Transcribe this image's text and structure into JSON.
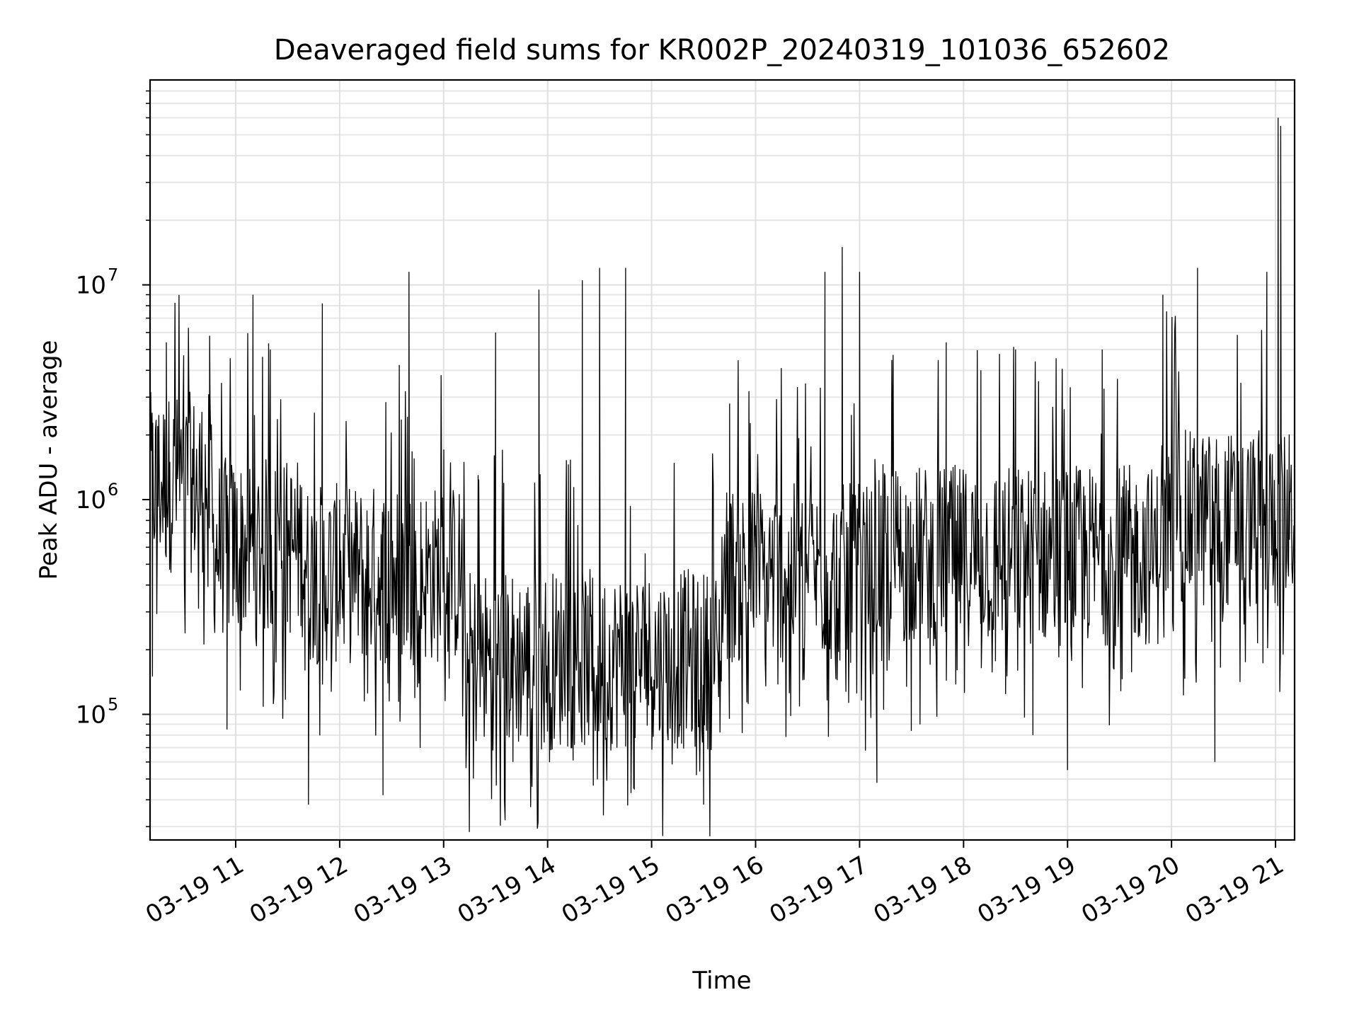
{
  "chart_data": {
    "type": "line",
    "title": "Deaveraged field sums for KR002P_20240319_101036_652602",
    "xlabel": "Time",
    "ylabel": "Peak ADU - average",
    "y_scale": "log",
    "x_range": [
      "2024-03-19 10:10:36",
      "2024-03-19 21:11:00"
    ],
    "ylim": [
      26000,
      90000000
    ],
    "grid": true,
    "x_ticks": [
      "03-19 11",
      "03-19 12",
      "03-19 13",
      "03-19 14",
      "03-19 15",
      "03-19 16",
      "03-19 17",
      "03-19 18",
      "03-19 19",
      "03-19 20",
      "03-19 21"
    ],
    "y_ticks": [
      {
        "value": 100000,
        "base": "10",
        "exp": "5"
      },
      {
        "value": 1000000,
        "base": "10",
        "exp": "6"
      },
      {
        "value": 10000000,
        "base": "10",
        "exp": "7"
      }
    ],
    "series": [
      {
        "color": "#000000",
        "values": [
          [
            "2024-03-19 10:10:36",
            3000000
          ],
          [
            "2024-03-19 10:12:00",
            150000
          ],
          [
            "2024-03-19 10:15:00",
            2200000
          ],
          [
            "2024-03-19 10:18:00",
            800000
          ],
          [
            "2024-03-19 10:20:00",
            5400000
          ],
          [
            "2024-03-19 10:22:00",
            1500000
          ],
          [
            "2024-03-19 10:30:00",
            4700000
          ],
          [
            "2024-03-19 10:35:00",
            700000
          ],
          [
            "2024-03-19 10:45:00",
            5800000
          ],
          [
            "2024-03-19 10:55:00",
            85000
          ],
          [
            "2024-03-19 11:00:00",
            700000
          ],
          [
            "2024-03-19 11:10:00",
            9000000
          ],
          [
            "2024-03-19 11:20:00",
            5000000
          ],
          [
            "2024-03-19 11:30:00",
            600000
          ],
          [
            "2024-03-19 11:40:00",
            160000
          ],
          [
            "2024-03-19 11:50:00",
            8200000
          ],
          [
            "2024-03-19 11:42:00",
            38000
          ],
          [
            "2024-03-19 12:00:00",
            1000000
          ],
          [
            "2024-03-19 12:20:00",
            300000
          ],
          [
            "2024-03-19 12:25:00",
            42000
          ],
          [
            "2024-03-19 12:40:00",
            11500000
          ],
          [
            "2024-03-19 12:50:00",
            700000
          ],
          [
            "2024-03-19 13:00:00",
            500000
          ],
          [
            "2024-03-19 13:20:00",
            200000
          ],
          [
            "2024-03-19 13:30:00",
            6000000
          ],
          [
            "2024-03-19 13:40:00",
            60000
          ],
          [
            "2024-03-19 13:55:00",
            9500000
          ],
          [
            "2024-03-19 14:05:00",
            150000
          ],
          [
            "2024-03-19 14:20:00",
            10500000
          ],
          [
            "2024-03-19 14:30:00",
            12000000
          ],
          [
            "2024-03-19 14:45:00",
            12000000
          ],
          [
            "2024-03-19 14:50:00",
            45000
          ],
          [
            "2024-03-19 15:00:00",
            150000
          ],
          [
            "2024-03-19 15:20:00",
            90000
          ],
          [
            "2024-03-19 15:30:00",
            38000
          ],
          [
            "2024-03-19 15:45:00",
            2800000
          ],
          [
            "2024-03-19 16:00:00",
            600000
          ],
          [
            "2024-03-19 16:20:00",
            500000
          ],
          [
            "2024-03-19 16:40:00",
            11500000
          ],
          [
            "2024-03-19 16:50:00",
            15000000
          ],
          [
            "2024-03-19 17:00:00",
            11500000
          ],
          [
            "2024-03-19 17:10:00",
            48000
          ],
          [
            "2024-03-19 17:30:00",
            600000
          ],
          [
            "2024-03-19 17:50:00",
            5400000
          ],
          [
            "2024-03-19 18:10:00",
            4000000
          ],
          [
            "2024-03-19 18:30:00",
            5000000
          ],
          [
            "2024-03-19 18:40:00",
            80000
          ],
          [
            "2024-03-19 19:00:00",
            55000
          ],
          [
            "2024-03-19 19:20:00",
            5000000
          ],
          [
            "2024-03-19 19:40:00",
            700000
          ],
          [
            "2024-03-19 19:55:00",
            9000000
          ],
          [
            "2024-03-19 20:15:00",
            12000000
          ],
          [
            "2024-03-19 20:25:00",
            60000
          ],
          [
            "2024-03-19 20:40:00",
            3500000
          ],
          [
            "2024-03-19 20:55:00",
            11500000
          ],
          [
            "2024-03-19 21:00:00",
            800000
          ],
          [
            "2024-03-19 21:01:30",
            60000000
          ],
          [
            "2024-03-19 21:03:00",
            55000000
          ],
          [
            "2024-03-19 21:05:00",
            1100000
          ],
          [
            "2024-03-19 21:08:00",
            650000
          ],
          [
            "2024-03-19 21:11:00",
            1400000
          ]
        ]
      }
    ]
  }
}
